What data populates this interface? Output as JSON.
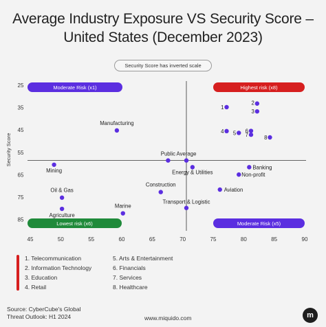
{
  "header": {
    "title_line1": "Average Industry Exposure VS Security Score –",
    "title_line2": "United States (December 2023)",
    "note": "Security Score has inverted scale"
  },
  "chart_data": {
    "type": "scatter",
    "xlim": [
      45,
      90
    ],
    "ylim": [
      25,
      90
    ],
    "y_inverted": true,
    "ylabel": "Security Score",
    "x_ticks": [
      45,
      50,
      55,
      60,
      65,
      70,
      75,
      80,
      85,
      90
    ],
    "y_ticks": [
      25,
      35,
      45,
      55,
      65,
      75,
      85
    ],
    "reference_lines": {
      "x": 70.6,
      "y": 58.6
    },
    "point_color": "#5b2ee0",
    "points": [
      {
        "label": "1",
        "x": 77.2,
        "y": 34.8
      },
      {
        "label": "2",
        "x": 82.2,
        "y": 33.2
      },
      {
        "label": "3",
        "x": 82.2,
        "y": 36.7
      },
      {
        "label": "4",
        "x": 77.2,
        "y": 45.5
      },
      {
        "label": "5",
        "x": 79.2,
        "y": 46.3
      },
      {
        "label": "6",
        "x": 81.2,
        "y": 45.4
      },
      {
        "label": "7",
        "x": 81.2,
        "y": 47.1
      },
      {
        "label": "8",
        "x": 84.3,
        "y": 48.3
      },
      {
        "label": "Manufacturing",
        "x": 59.2,
        "y": 45.2
      },
      {
        "label": "Public",
        "x": 67.6,
        "y": 58.6
      },
      {
        "label": "Average",
        "x": 70.6,
        "y": 58.6
      },
      {
        "label": "Energy & Utilities",
        "x": 71.6,
        "y": 61.6
      },
      {
        "label": "Banking",
        "x": 80.9,
        "y": 61.6
      },
      {
        "label": "Non-profit",
        "x": 79.2,
        "y": 64.9
      },
      {
        "label": "Mining",
        "x": 48.9,
        "y": 60.5
      },
      {
        "label": "Aviation",
        "x": 76.1,
        "y": 71.6
      },
      {
        "label": "Construction",
        "x": 66.4,
        "y": 72.7
      },
      {
        "label": "Oil & Gas",
        "x": 50.2,
        "y": 75.2
      },
      {
        "label": "Transport & Logistic",
        "x": 70.6,
        "y": 79.8
      },
      {
        "label": "Agriculture",
        "x": 50.2,
        "y": 80.2
      },
      {
        "label": "Marine",
        "x": 60.2,
        "y": 82.2
      }
    ],
    "quadrants": [
      {
        "label": "Moderate Risk (x1)",
        "color": "#5b2ee0"
      },
      {
        "label": "Highest risk (x8)",
        "color": "#d61f1f"
      },
      {
        "label": "Lowest risk (x6)",
        "color": "#1f8a3a"
      },
      {
        "label": "Moderate Risk (x5)",
        "color": "#5b2ee0"
      }
    ]
  },
  "legend": [
    "1.  Telecommunication",
    "2.  Information Technology",
    "3.  Education",
    "4.  Retail",
    "5.  Arts & Entertainment",
    "6.  Financials",
    "7.  Services",
    "8.  Healthcare"
  ],
  "footer": {
    "source_line1": "Source: CyberCube's Global",
    "source_line2": "Threat Outlook: H1 2024",
    "url": "www.miquido.com",
    "logo_glyph": "m"
  }
}
